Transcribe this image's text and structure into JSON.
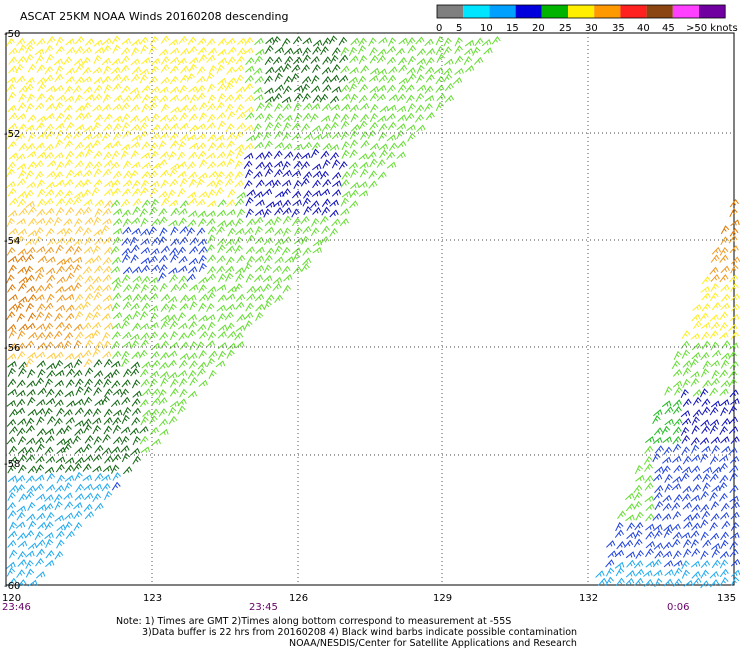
{
  "title": "ASCAT 25KM NOAA Winds 20160208 descending",
  "legend": {
    "labels": [
      "0",
      "5",
      "10",
      "15",
      "20",
      "25",
      "30",
      "35",
      "40",
      "45",
      ">50 knots"
    ],
    "colors": [
      "#7f7f7f",
      "#00e5ff",
      "#00a0ff",
      "#0000dd",
      "#00b400",
      "#ffee00",
      "#ff9900",
      "#ff2020",
      "#8b4513",
      "#ff40ff",
      "#7000a0"
    ]
  },
  "map": {
    "lon_labels": [
      "120",
      "123",
      "126",
      "129",
      "132",
      "135"
    ],
    "lat_labels": [
      "-50",
      "-52",
      "-54",
      "-56",
      "-58",
      "-60"
    ],
    "time_labels": [
      "23:46",
      "23:45",
      "0:06"
    ]
  },
  "notes": {
    "line1": "Note: 1) Times are GMT 2)Times along bottom correspond to measurement at -55S",
    "line2": "3)Data buffer is 22 hrs from 20160208 4) Black wind barbs indicate possible contamination",
    "line3": "NOAA/NESDIS/Center for Satellite Applications and Research"
  },
  "swath_colors": {
    "light_green": "#66dd33",
    "green": "#22bb22",
    "dark_green": "#116611",
    "yellow": "#ffee22",
    "light_orange": "#ffcc44",
    "orange": "#ee9922",
    "dark_orange": "#dd7700",
    "blue": "#2244dd",
    "dark_blue": "#1111bb",
    "cyan": "#22aaee",
    "red_brown": "#cc4411"
  }
}
